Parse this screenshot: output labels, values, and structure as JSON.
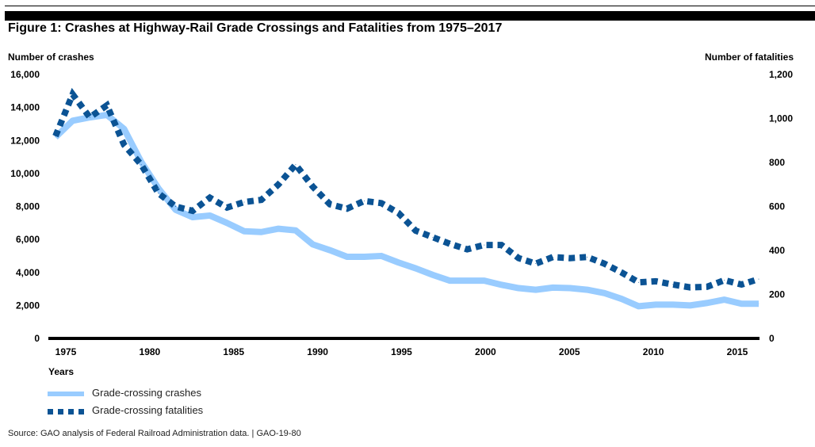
{
  "figure": {
    "title": "Figure 1: Crashes at Highway-Rail Grade Crossings and Fatalities from 1975–2017",
    "source": "Source: GAO analysis of Federal Railroad Administration data.  |  GAO-19-80"
  },
  "colors": {
    "crashes": "#99CCFF",
    "fatalities": "#0B5394",
    "axis": "#000000"
  },
  "chart_data": {
    "type": "line",
    "title": "Figure 1: Crashes at Highway-Rail Grade Crossings and Fatalities from 1975–2017",
    "xlabel": "Years",
    "ylabel": "Number of crashes",
    "ylabel_right": "Number of fatalities",
    "xlim": [
      1975,
      2016
    ],
    "ylim": [
      0,
      16000
    ],
    "ylim_right": [
      0,
      1200
    ],
    "grid": false,
    "legend_position": "bottom-left",
    "x_ticks": [
      "1975",
      "1980",
      "1985",
      "1990",
      "1995",
      "2000",
      "2005",
      "2010",
      "2015"
    ],
    "x_tick_values": [
      1975,
      1980,
      1985,
      1990,
      1995,
      2000,
      2005,
      2010,
      2015
    ],
    "y_ticks": [
      "0",
      "2,000",
      "4,000",
      "6,000",
      "8,000",
      "10,000",
      "12,000",
      "14,000",
      "16,000"
    ],
    "y_tick_values": [
      0,
      2000,
      4000,
      6000,
      8000,
      10000,
      12000,
      14000,
      16000
    ],
    "y_ticks_right": [
      "0",
      "200",
      "400",
      "600",
      "800",
      "1,000",
      "1,200"
    ],
    "y_tick_values_right": [
      0,
      200,
      400,
      600,
      800,
      1000,
      1200
    ],
    "x": [
      1975,
      1976,
      1977,
      1978,
      1979,
      1980,
      1981,
      1982,
      1983,
      1984,
      1985,
      1986,
      1987,
      1988,
      1989,
      1990,
      1991,
      1992,
      1993,
      1994,
      1995,
      1996,
      1997,
      1998,
      1999,
      2000,
      2001,
      2002,
      2003,
      2004,
      2005,
      2006,
      2007,
      2008,
      2009,
      2010,
      2011,
      2012,
      2013,
      2014,
      2015,
      2016
    ],
    "series": [
      {
        "name": "Grade-crossing crashes",
        "axis": "left",
        "style": "solid",
        "values": [
          12200,
          13200,
          13400,
          13550,
          12700,
          10700,
          9100,
          7800,
          7350,
          7450,
          7000,
          6500,
          6450,
          6650,
          6550,
          5700,
          5350,
          4950,
          4950,
          5000,
          4600,
          4250,
          3850,
          3500,
          3500,
          3500,
          3250,
          3050,
          2950,
          3080,
          3050,
          2950,
          2750,
          2400,
          1950,
          2050,
          2050,
          2000,
          2150,
          2350,
          2100,
          2100
        ]
      },
      {
        "name": "Grade-crossing fatalities",
        "axis": "right",
        "style": "dotted",
        "values": [
          920,
          1110,
          1005,
          1060,
          880,
          790,
          660,
          600,
          580,
          640,
          595,
          620,
          630,
          700,
          790,
          690,
          610,
          590,
          625,
          615,
          570,
          490,
          460,
          430,
          405,
          425,
          425,
          365,
          340,
          370,
          365,
          370,
          340,
          300,
          255,
          260,
          245,
          232,
          235,
          265,
          245,
          270
        ]
      }
    ]
  }
}
